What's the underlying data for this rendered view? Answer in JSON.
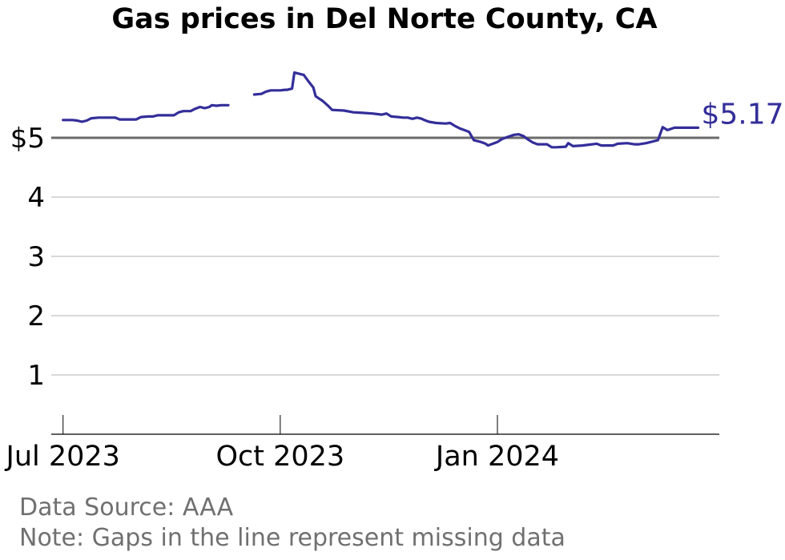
{
  "chart_data": {
    "type": "line",
    "title": "Gas prices in Del Norte County, CA",
    "ylim": [
      0,
      5.6
    ],
    "y_ticks": [
      1,
      2,
      3,
      4,
      5
    ],
    "y_tick_labels": [
      "1",
      "2",
      "3",
      "4",
      "$5"
    ],
    "xlim": [
      "2023-06-26",
      "2024-04-04"
    ],
    "x_ticks": [
      "2023-07-01",
      "2023-10-01",
      "2024-01-01"
    ],
    "x_tick_labels": [
      "Jul 2023",
      "Oct 2023",
      "Jan 2024"
    ],
    "reference_line": 5,
    "grid": "horizontal",
    "end_label": "$5.17",
    "line_color": "#332e99",
    "segments": [
      [
        [
          "2023-07-01",
          5.3
        ],
        [
          "2023-07-05",
          5.3
        ],
        [
          "2023-07-07",
          5.29
        ],
        [
          "2023-07-09",
          5.27
        ],
        [
          "2023-07-11",
          5.29
        ],
        [
          "2023-07-13",
          5.33
        ],
        [
          "2023-07-16",
          5.34
        ],
        [
          "2023-07-20",
          5.34
        ],
        [
          "2023-07-23",
          5.34
        ],
        [
          "2023-07-25",
          5.31
        ],
        [
          "2023-07-29",
          5.31
        ],
        [
          "2023-08-01",
          5.31
        ],
        [
          "2023-08-03",
          5.35
        ],
        [
          "2023-08-06",
          5.36
        ],
        [
          "2023-08-08",
          5.36
        ],
        [
          "2023-08-10",
          5.38
        ],
        [
          "2023-08-13",
          5.38
        ],
        [
          "2023-08-15",
          5.38
        ],
        [
          "2023-08-17",
          5.38
        ],
        [
          "2023-08-19",
          5.43
        ],
        [
          "2023-08-21",
          5.45
        ],
        [
          "2023-08-24",
          5.45
        ],
        [
          "2023-08-26",
          5.49
        ],
        [
          "2023-08-28",
          5.52
        ],
        [
          "2023-08-30",
          5.5
        ],
        [
          "2023-09-01",
          5.52
        ],
        [
          "2023-09-02",
          5.55
        ],
        [
          "2023-09-04",
          5.54
        ],
        [
          "2023-09-06",
          5.55
        ],
        [
          "2023-09-09",
          5.55
        ]
      ],
      [
        [
          "2023-09-20",
          5.73
        ],
        [
          "2023-09-23",
          5.74
        ],
        [
          "2023-09-25",
          5.78
        ],
        [
          "2023-09-27",
          5.8
        ],
        [
          "2023-10-01",
          5.8
        ],
        [
          "2023-10-03",
          5.81
        ],
        [
          "2023-10-04",
          5.81
        ],
        [
          "2023-10-06",
          5.83
        ],
        [
          "2023-10-07",
          6.1
        ],
        [
          "2023-10-09",
          6.08
        ],
        [
          "2023-10-11",
          6.06
        ],
        [
          "2023-10-13",
          5.95
        ],
        [
          "2023-10-15",
          5.85
        ],
        [
          "2023-10-16",
          5.7
        ],
        [
          "2023-10-19",
          5.62
        ],
        [
          "2023-10-21",
          5.55
        ],
        [
          "2023-10-23",
          5.47
        ],
        [
          "2023-10-28",
          5.46
        ],
        [
          "2023-11-01",
          5.43
        ],
        [
          "2023-11-05",
          5.42
        ],
        [
          "2023-11-09",
          5.41
        ],
        [
          "2023-11-11",
          5.4
        ],
        [
          "2023-11-13",
          5.39
        ],
        [
          "2023-11-15",
          5.41
        ],
        [
          "2023-11-17",
          5.36
        ],
        [
          "2023-11-20",
          5.35
        ],
        [
          "2023-11-22",
          5.34
        ],
        [
          "2023-11-24",
          5.34
        ],
        [
          "2023-11-26",
          5.32
        ],
        [
          "2023-11-28",
          5.34
        ],
        [
          "2023-11-30",
          5.32
        ],
        [
          "2023-12-01",
          5.3
        ],
        [
          "2023-12-03",
          5.27
        ],
        [
          "2023-12-06",
          5.25
        ],
        [
          "2023-12-10",
          5.24
        ],
        [
          "2023-12-12",
          5.25
        ],
        [
          "2023-12-14",
          5.2
        ],
        [
          "2023-12-16",
          5.16
        ],
        [
          "2023-12-18",
          5.13
        ],
        [
          "2023-12-20",
          5.1
        ],
        [
          "2023-12-22",
          4.96
        ],
        [
          "2023-12-25",
          4.93
        ],
        [
          "2023-12-27",
          4.9
        ],
        [
          "2023-12-28",
          4.87
        ],
        [
          "2024-01-01",
          4.93
        ],
        [
          "2024-01-03",
          4.98
        ],
        [
          "2024-01-05",
          5.01
        ],
        [
          "2024-01-08",
          5.05
        ],
        [
          "2024-01-10",
          5.06
        ],
        [
          "2024-01-12",
          5.03
        ],
        [
          "2024-01-14",
          4.97
        ],
        [
          "2024-01-16",
          4.92
        ],
        [
          "2024-01-18",
          4.89
        ],
        [
          "2024-01-22",
          4.89
        ],
        [
          "2024-01-24",
          4.84
        ],
        [
          "2024-01-26",
          4.84
        ],
        [
          "2024-01-30",
          4.85
        ],
        [
          "2024-01-31",
          4.91
        ],
        [
          "2024-02-02",
          4.86
        ],
        [
          "2024-02-06",
          4.87
        ],
        [
          "2024-02-08",
          4.88
        ],
        [
          "2024-02-12",
          4.9
        ],
        [
          "2024-02-14",
          4.87
        ],
        [
          "2024-02-19",
          4.87
        ],
        [
          "2024-02-21",
          4.9
        ],
        [
          "2024-02-25",
          4.91
        ],
        [
          "2024-02-28",
          4.89
        ],
        [
          "2024-03-01",
          4.89
        ],
        [
          "2024-03-04",
          4.91
        ],
        [
          "2024-03-09",
          4.96
        ],
        [
          "2024-03-11",
          5.18
        ],
        [
          "2024-03-13",
          5.13
        ],
        [
          "2024-03-16",
          5.17
        ],
        [
          "2024-03-20",
          5.17
        ],
        [
          "2024-03-26",
          5.17
        ]
      ]
    ]
  },
  "footer": {
    "source": "Data Source: AAA",
    "note": "Note: Gaps in the line represent missing data"
  }
}
